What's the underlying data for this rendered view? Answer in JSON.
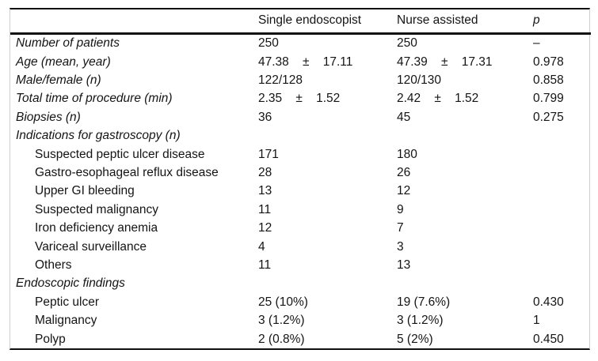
{
  "table": {
    "columns": [
      "",
      "Single endoscopist",
      "Nurse assisted",
      "p"
    ],
    "rows": [
      {
        "label": "Number of patients",
        "values": [
          "250",
          "250",
          "–"
        ]
      },
      {
        "label": "Age (mean, year)",
        "values": [
          "47.38    ±    17.11",
          "47.39    ±    17.31",
          "0.978"
        ]
      },
      {
        "label": "Male/female (n)",
        "values": [
          "122/128",
          "120/130",
          "0.858"
        ]
      },
      {
        "label": "Total time of procedure (min)",
        "values": [
          "2.35    ±    1.52",
          "2.42    ±    1.52",
          "0.799"
        ]
      },
      {
        "label": "Biopsies (n)",
        "values": [
          "36",
          "45",
          "0.275"
        ]
      },
      {
        "label": "Indications for gastroscopy (n)",
        "values": [
          "",
          "",
          ""
        ]
      },
      {
        "label": "Suspected peptic ulcer disease",
        "values": [
          "171",
          "180",
          ""
        ]
      },
      {
        "label": "Gastro-esophageal reflux disease",
        "values": [
          "28",
          "26",
          ""
        ]
      },
      {
        "label": "Upper GI bleeding",
        "values": [
          "13",
          "12",
          ""
        ]
      },
      {
        "label": "Suspected malignancy",
        "values": [
          "11",
          "9",
          ""
        ]
      },
      {
        "label": "Iron deficiency anemia",
        "values": [
          "12",
          "7",
          ""
        ]
      },
      {
        "label": "Variceal surveillance",
        "values": [
          "4",
          "3",
          ""
        ]
      },
      {
        "label": "Others",
        "values": [
          "11",
          "13",
          ""
        ]
      },
      {
        "label": "Endoscopic findings",
        "values": [
          "",
          "",
          ""
        ]
      },
      {
        "label": "Peptic ulcer",
        "values": [
          "25 (10%)",
          "19 (7.6%)",
          "0.430"
        ]
      },
      {
        "label": "Malignancy",
        "values": [
          "3 (1.2%)",
          "3 (1.2%)",
          "1"
        ]
      },
      {
        "label": "Polyp",
        "values": [
          "2 (0.8%)",
          "5 (2%)",
          "0.450"
        ]
      }
    ],
    "colors": {
      "rule": "#101010",
      "scan_border": "#cfcfcf",
      "text": "#141414"
    }
  }
}
